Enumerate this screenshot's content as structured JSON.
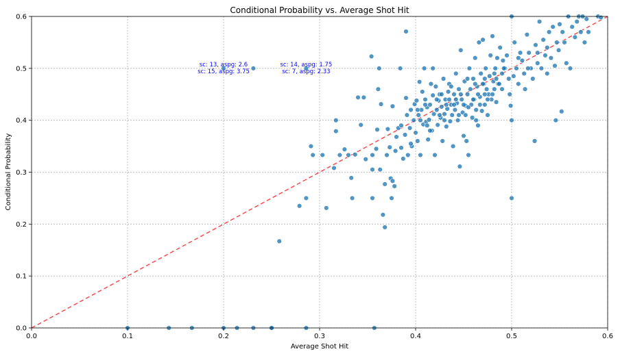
{
  "chart_data": {
    "type": "scatter",
    "title": "Conditional Probability vs. Average Shot Hit",
    "xlabel": "Average Shot Hit",
    "ylabel": "Conditional Probability",
    "xlim": [
      0,
      0.6
    ],
    "ylim": [
      0,
      0.6
    ],
    "x_ticks": [
      0.0,
      0.1,
      0.2,
      0.3,
      0.4,
      0.5,
      0.6
    ],
    "y_ticks": [
      0.0,
      0.1,
      0.2,
      0.3,
      0.4,
      0.5,
      0.6
    ],
    "x_tick_labels": [
      "0.0",
      "0.1",
      "0.2",
      "0.3",
      "0.4",
      "0.5",
      "0.6"
    ],
    "y_tick_labels": [
      "0.0",
      "0.1",
      "0.2",
      "0.3",
      "0.4",
      "0.5",
      "0.6"
    ],
    "grid": true,
    "reference_line": {
      "from": [
        0,
        0
      ],
      "to": [
        0.6,
        0.6
      ],
      "color": "#ff4040",
      "style": "dashed"
    },
    "point_color": "#1f77b4",
    "points": [
      [
        0.1,
        0
      ],
      [
        0.143,
        0
      ],
      [
        0.167,
        0
      ],
      [
        0.2,
        0
      ],
      [
        0.214,
        0
      ],
      [
        0.231,
        0
      ],
      [
        0.25,
        0
      ],
      [
        0.25,
        0
      ],
      [
        0.286,
        0
      ],
      [
        0.357,
        0
      ],
      [
        0.231,
        0.5
      ],
      [
        0.286,
        0.5
      ],
      [
        0.2,
        0.5
      ],
      [
        0.258,
        0.167
      ],
      [
        0.279,
        0.235
      ],
      [
        0.286,
        0.25
      ],
      [
        0.307,
        0.231
      ],
      [
        0.291,
        0.35
      ],
      [
        0.293,
        0.333
      ],
      [
        0.303,
        0.333
      ],
      [
        0.315,
        0.308
      ],
      [
        0.317,
        0.4
      ],
      [
        0.317,
        0.379
      ],
      [
        0.321,
        0.333
      ],
      [
        0.326,
        0.344
      ],
      [
        0.33,
        0.333
      ],
      [
        0.333,
        0.289
      ],
      [
        0.334,
        0.25
      ],
      [
        0.337,
        0.334
      ],
      [
        0.34,
        0.444
      ],
      [
        0.346,
        0.444
      ],
      [
        0.343,
        0.391
      ],
      [
        0.348,
        0.325
      ],
      [
        0.354,
        0.523
      ],
      [
        0.355,
        0.333
      ],
      [
        0.355,
        0.305
      ],
      [
        0.355,
        0.25
      ],
      [
        0.359,
        0.345
      ],
      [
        0.36,
        0.382
      ],
      [
        0.361,
        0.46
      ],
      [
        0.362,
        0.5
      ],
      [
        0.363,
        0.305
      ],
      [
        0.364,
        0.431
      ],
      [
        0.366,
        0.218
      ],
      [
        0.368,
        0.194
      ],
      [
        0.368,
        0.277
      ],
      [
        0.37,
        0.333
      ],
      [
        0.371,
        0.383
      ],
      [
        0.373,
        0.348
      ],
      [
        0.374,
        0.288
      ],
      [
        0.375,
        0.25
      ],
      [
        0.376,
        0.283
      ],
      [
        0.378,
        0.273
      ],
      [
        0.379,
        0.341
      ],
      [
        0.38,
        0.368
      ],
      [
        0.382,
        0.385
      ],
      [
        0.384,
        0.5
      ],
      [
        0.385,
        0.347
      ],
      [
        0.387,
        0.326
      ],
      [
        0.389,
        0.372
      ],
      [
        0.39,
        0.571
      ],
      [
        0.39,
        0.443
      ],
      [
        0.391,
        0.41
      ],
      [
        0.392,
        0.333
      ],
      [
        0.394,
        0.385
      ],
      [
        0.396,
        0.35
      ],
      [
        0.398,
        0.4
      ],
      [
        0.399,
        0.431
      ],
      [
        0.4,
        0.376
      ],
      [
        0.401,
        0.438
      ],
      [
        0.402,
        0.36
      ],
      [
        0.403,
        0.41
      ],
      [
        0.404,
        0.474
      ],
      [
        0.405,
        0.333
      ],
      [
        0.406,
        0.42
      ],
      [
        0.407,
        0.455
      ],
      [
        0.408,
        0.392
      ],
      [
        0.409,
        0.5
      ],
      [
        0.41,
        0.44
      ],
      [
        0.411,
        0.397
      ],
      [
        0.412,
        0.425
      ],
      [
        0.413,
        0.363
      ],
      [
        0.414,
        0.401
      ],
      [
        0.415,
        0.43
      ],
      [
        0.416,
        0.47
      ],
      [
        0.417,
        0.38
      ],
      [
        0.418,
        0.448
      ],
      [
        0.419,
        0.412
      ],
      [
        0.42,
        0.333
      ],
      [
        0.421,
        0.465
      ],
      [
        0.422,
        0.42
      ],
      [
        0.423,
        0.391
      ],
      [
        0.424,
        0.438
      ],
      [
        0.425,
        0.45
      ],
      [
        0.426,
        0.405
      ],
      [
        0.427,
        0.426
      ],
      [
        0.428,
        0.36
      ],
      [
        0.429,
        0.48
      ],
      [
        0.43,
        0.412
      ],
      [
        0.431,
        0.44
      ],
      [
        0.432,
        0.388
      ],
      [
        0.433,
        0.422
      ],
      [
        0.434,
        0.455
      ],
      [
        0.435,
        0.47
      ],
      [
        0.436,
        0.398
      ],
      [
        0.437,
        0.43
      ],
      [
        0.438,
        0.41
      ],
      [
        0.439,
        0.35
      ],
      [
        0.44,
        0.45
      ],
      [
        0.441,
        0.42
      ],
      [
        0.442,
        0.49
      ],
      [
        0.443,
        0.433
      ],
      [
        0.444,
        0.4
      ],
      [
        0.445,
        0.46
      ],
      [
        0.446,
        0.311
      ],
      [
        0.447,
        0.535
      ],
      [
        0.448,
        0.44
      ],
      [
        0.449,
        0.415
      ],
      [
        0.45,
        0.37
      ],
      [
        0.451,
        0.475
      ],
      [
        0.452,
        0.428
      ],
      [
        0.453,
        0.36
      ],
      [
        0.454,
        0.45
      ],
      [
        0.455,
        0.333
      ],
      [
        0.456,
        0.5
      ],
      [
        0.457,
        0.46
      ],
      [
        0.458,
        0.43
      ],
      [
        0.459,
        0.405
      ],
      [
        0.46,
        0.48
      ],
      [
        0.461,
        0.44
      ],
      [
        0.462,
        0.52
      ],
      [
        0.463,
        0.42
      ],
      [
        0.464,
        0.465
      ],
      [
        0.465,
        0.39
      ],
      [
        0.466,
        0.55
      ],
      [
        0.467,
        0.445
      ],
      [
        0.468,
        0.49
      ],
      [
        0.469,
        0.418
      ],
      [
        0.47,
        0.555
      ],
      [
        0.471,
        0.47
      ],
      [
        0.472,
        0.43
      ],
      [
        0.473,
        0.5
      ],
      [
        0.474,
        0.46
      ],
      [
        0.475,
        0.41
      ],
      [
        0.476,
        0.45
      ],
      [
        0.477,
        0.485
      ],
      [
        0.478,
        0.525
      ],
      [
        0.479,
        0.44
      ],
      [
        0.48,
        0.562
      ],
      [
        0.481,
        0.475
      ],
      [
        0.482,
        0.46
      ],
      [
        0.483,
        0.5
      ],
      [
        0.484,
        0.435
      ],
      [
        0.485,
        0.52
      ],
      [
        0.486,
        0.47
      ],
      [
        0.488,
        0.54
      ],
      [
        0.49,
        0.49
      ],
      [
        0.491,
        0.515
      ],
      [
        0.493,
        0.5
      ],
      [
        0.495,
        0.525
      ],
      [
        0.497,
        0.48
      ],
      [
        0.498,
        0.45
      ],
      [
        0.499,
        0.428
      ],
      [
        0.5,
        0.6
      ],
      [
        0.5,
        0.4
      ],
      [
        0.5,
        0.25
      ],
      [
        0.502,
        0.485
      ],
      [
        0.503,
        0.55
      ],
      [
        0.505,
        0.5
      ],
      [
        0.507,
        0.47
      ],
      [
        0.509,
        0.53
      ],
      [
        0.511,
        0.515
      ],
      [
        0.513,
        0.49
      ],
      [
        0.514,
        0.46
      ],
      [
        0.516,
        0.565
      ],
      [
        0.518,
        0.53
      ],
      [
        0.52,
        0.5
      ],
      [
        0.522,
        0.48
      ],
      [
        0.524,
        0.36
      ],
      [
        0.525,
        0.545
      ],
      [
        0.527,
        0.51
      ],
      [
        0.529,
        0.59
      ],
      [
        0.531,
        0.5
      ],
      [
        0.533,
        0.555
      ],
      [
        0.535,
        0.525
      ],
      [
        0.537,
        0.49
      ],
      [
        0.539,
        0.57
      ],
      [
        0.541,
        0.52
      ],
      [
        0.543,
        0.58
      ],
      [
        0.545,
        0.505
      ],
      [
        0.546,
        0.4
      ],
      [
        0.547,
        0.55
      ],
      [
        0.549,
        0.535
      ],
      [
        0.55,
        0.585
      ],
      [
        0.552,
        0.417
      ],
      [
        0.553,
        0.57
      ],
      [
        0.555,
        0.55
      ],
      [
        0.557,
        0.51
      ],
      [
        0.559,
        0.6
      ],
      [
        0.561,
        0.5
      ],
      [
        0.563,
        0.58
      ],
      [
        0.566,
        0.56
      ],
      [
        0.568,
        0.59
      ],
      [
        0.57,
        0.6
      ],
      [
        0.572,
        0.57
      ],
      [
        0.574,
        0.6
      ],
      [
        0.576,
        0.55
      ],
      [
        0.578,
        0.595
      ],
      [
        0.58,
        0.57
      ],
      [
        0.59,
        0.6
      ],
      [
        0.593,
        0.598
      ],
      [
        0.376,
        0.427
      ],
      [
        0.395,
        0.42
      ],
      [
        0.418,
        0.5
      ],
      [
        0.437,
        0.465
      ],
      [
        0.454,
        0.48
      ],
      [
        0.463,
        0.4
      ],
      [
        0.472,
        0.45
      ],
      [
        0.484,
        0.48
      ],
      [
        0.41,
        0.43
      ],
      [
        0.425,
        0.41
      ],
      [
        0.44,
        0.43
      ],
      [
        0.455,
        0.425
      ],
      [
        0.47,
        0.47
      ],
      [
        0.43,
        0.4
      ],
      [
        0.445,
        0.41
      ],
      [
        0.46,
        0.44
      ],
      [
        0.475,
        0.44
      ],
      [
        0.49,
        0.46
      ],
      [
        0.405,
        0.4
      ],
      [
        0.415,
        0.38
      ],
      [
        0.435,
        0.44
      ],
      [
        0.45,
        0.43
      ],
      [
        0.465,
        0.45
      ],
      [
        0.48,
        0.45
      ],
      [
        0.395,
        0.355
      ],
      [
        0.385,
        0.39
      ],
      [
        0.412,
        0.39
      ],
      [
        0.422,
        0.44
      ],
      [
        0.432,
        0.43
      ],
      [
        0.442,
        0.44
      ],
      [
        0.452,
        0.41
      ],
      [
        0.462,
        0.47
      ],
      [
        0.472,
        0.48
      ],
      [
        0.482,
        0.49
      ],
      [
        0.492,
        0.5
      ],
      [
        0.402,
        0.42
      ],
      [
        0.427,
        0.45
      ],
      [
        0.447,
        0.45
      ],
      [
        0.467,
        0.43
      ],
      [
        0.487,
        0.47
      ],
      [
        0.507,
        0.52
      ],
      [
        0.517,
        0.5
      ],
      [
        0.527,
        0.53
      ],
      [
        0.537,
        0.54
      ]
    ],
    "annotations": [
      {
        "text": "sc: 13, aspg: 2.6",
        "x": 0.2,
        "y": 0.5,
        "offset": "above"
      },
      {
        "text": "sc: 15, aspg: 3.75",
        "x": 0.2,
        "y": 0.5,
        "offset": "below"
      },
      {
        "text": "sc: 14, aspg: 1.75",
        "x": 0.286,
        "y": 0.5,
        "offset": "above"
      },
      {
        "text": "sc: 7, aspg: 2.33",
        "x": 0.286,
        "y": 0.5,
        "offset": "below"
      }
    ]
  }
}
